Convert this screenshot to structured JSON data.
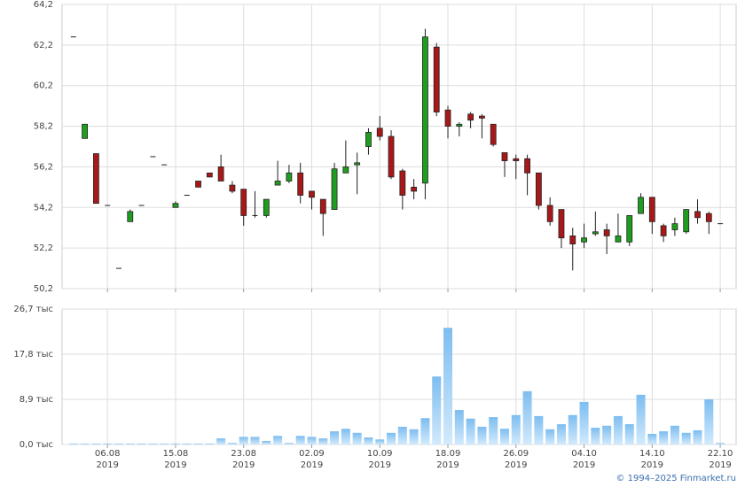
{
  "chart_data": [
    {
      "type": "candlestick",
      "open": [
        62.6,
        57.6,
        56.85,
        54.3,
        51.2,
        53.5,
        54.3,
        56.7,
        56.3,
        54.2,
        54.8,
        55.5,
        55.9,
        56.2,
        55.3,
        55.1,
        53.8,
        53.8,
        55.3,
        55.5,
        55.9,
        55.0,
        54.6,
        54.1,
        55.9,
        56.3,
        57.2,
        58.1,
        57.7,
        56.0,
        55.2,
        55.4,
        62.1,
        59.0,
        58.2,
        58.8,
        58.7,
        58.3,
        56.9,
        56.6,
        56.6,
        55.9,
        54.3,
        54.1,
        52.8,
        52.5,
        52.9,
        53.1,
        52.5,
        52.5,
        53.9,
        54.7,
        53.3,
        53.1,
        53.0,
        54.0,
        53.9,
        53.4
      ],
      "high": [
        62.6,
        58.3,
        56.85,
        54.3,
        51.2,
        54.1,
        54.3,
        56.7,
        56.3,
        54.5,
        54.8,
        55.5,
        55.9,
        56.8,
        55.5,
        55.1,
        55.0,
        54.6,
        56.5,
        56.3,
        56.4,
        55.0,
        54.6,
        56.4,
        57.5,
        56.9,
        58.1,
        58.7,
        58.0,
        56.1,
        55.6,
        63.0,
        62.3,
        59.2,
        58.4,
        58.9,
        58.8,
        58.3,
        56.9,
        56.8,
        56.8,
        55.9,
        54.7,
        54.1,
        53.2,
        53.4,
        54.0,
        53.4,
        53.9,
        53.8,
        54.9,
        54.7,
        53.4,
        53.7,
        54.1,
        54.6,
        54.0,
        53.4
      ],
      "low": [
        62.6,
        57.6,
        54.4,
        54.3,
        51.2,
        53.5,
        54.3,
        56.7,
        56.3,
        54.2,
        54.8,
        55.2,
        55.7,
        55.5,
        54.9,
        53.3,
        53.7,
        53.7,
        55.3,
        55.4,
        54.4,
        54.1,
        52.8,
        54.1,
        55.9,
        54.85,
        56.8,
        57.5,
        55.6,
        54.1,
        54.6,
        54.6,
        58.7,
        57.6,
        57.7,
        58.1,
        57.6,
        57.2,
        55.7,
        55.6,
        54.8,
        54.1,
        53.3,
        52.2,
        51.1,
        52.2,
        52.8,
        51.9,
        52.5,
        52.3,
        53.9,
        52.9,
        52.5,
        52.8,
        52.9,
        53.4,
        52.9,
        53.4
      ],
      "close": [
        62.6,
        58.3,
        54.4,
        54.3,
        51.2,
        54.0,
        54.3,
        56.7,
        56.3,
        54.4,
        54.8,
        55.2,
        55.7,
        55.5,
        55.0,
        53.8,
        53.8,
        54.6,
        55.5,
        55.9,
        54.8,
        54.7,
        53.9,
        56.1,
        56.2,
        56.4,
        57.9,
        57.7,
        55.7,
        54.8,
        55.0,
        62.6,
        58.9,
        58.2,
        58.3,
        58.5,
        58.6,
        57.3,
        56.5,
        56.5,
        55.9,
        54.3,
        53.5,
        52.7,
        52.4,
        52.7,
        53.0,
        52.8,
        52.8,
        53.8,
        54.7,
        53.5,
        52.8,
        53.4,
        54.1,
        53.7,
        53.5,
        53.4
      ],
      "up_color": "#1f9d1f",
      "down_color": "#a81818",
      "xlim": [
        -1,
        58.4
      ],
      "xticks": [
        {
          "value": 3,
          "label": "06.08\n2019"
        },
        {
          "value": 9,
          "label": "15.08\n2019"
        },
        {
          "value": 15,
          "label": "23.08\n2019"
        },
        {
          "value": 21,
          "label": "02.09\n2019"
        },
        {
          "value": 27,
          "label": "10.09\n2019"
        },
        {
          "value": 33,
          "label": "18.09\n2019"
        },
        {
          "value": 39,
          "label": "26.09\n2019"
        },
        {
          "value": 45,
          "label": "04.10\n2019"
        },
        {
          "value": 51,
          "label": "14.10\n2019"
        },
        {
          "value": 57,
          "label": "22.10\n2019"
        }
      ],
      "ylim": [
        50.2,
        64.2
      ],
      "yticks": [
        {
          "value": 50.2,
          "label": "50,2"
        },
        {
          "value": 52.2,
          "label": "52,2"
        },
        {
          "value": 54.2,
          "label": "54,2"
        },
        {
          "value": 56.2,
          "label": "56,2"
        },
        {
          "value": 58.2,
          "label": "58,2"
        },
        {
          "value": 60.2,
          "label": "60,2"
        },
        {
          "value": 62.2,
          "label": "62,2"
        },
        {
          "value": 64.2,
          "label": "64,2"
        }
      ],
      "grid": true
    },
    {
      "type": "bar",
      "values": [
        0.2,
        0.2,
        0.2,
        0.2,
        0.2,
        0.2,
        0.2,
        0.2,
        0.2,
        0.2,
        0.2,
        0.2,
        0.2,
        1.2,
        0.3,
        1.5,
        1.5,
        0.7,
        1.7,
        0.3,
        1.7,
        1.5,
        1.2,
        2.6,
        3.1,
        2.3,
        1.4,
        1.0,
        2.3,
        3.5,
        3.0,
        5.2,
        13.4,
        23.0,
        6.8,
        5.1,
        3.5,
        5.4,
        3.1,
        5.8,
        10.5,
        5.6,
        3.0,
        4.0,
        5.8,
        8.4,
        3.3,
        3.7,
        5.6,
        4.0,
        9.8,
        2.1,
        2.6,
        3.7,
        2.3,
        2.8,
        8.9,
        0.3
      ],
      "color": "#8cc6f2",
      "ylim": [
        0,
        26.7
      ],
      "yticks": [
        {
          "value": 0,
          "label": "0,0 тыс"
        },
        {
          "value": 8.9,
          "label": "8,9 тыс"
        },
        {
          "value": 17.8,
          "label": "17,8 тыс"
        },
        {
          "value": 26.7,
          "label": "26,7 тыс"
        }
      ],
      "grid": true
    }
  ],
  "footer": "© 1994–2025 Finmarket.ru"
}
